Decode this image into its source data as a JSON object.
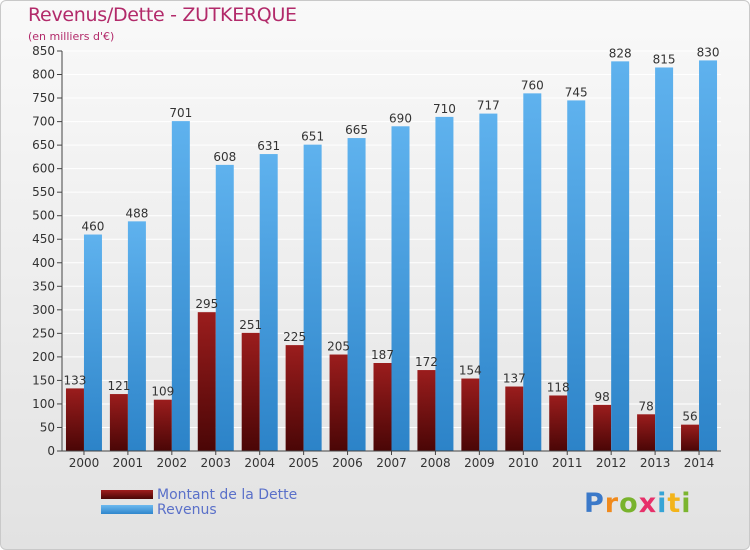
{
  "title": "Revenus/Dette - ZUTKERQUE",
  "subtitle": "(en milliers d'€)",
  "legend": {
    "debt_label": "Montant de la Dette",
    "revenue_label": "Revenus"
  },
  "logo": {
    "text": "Proxiti"
  },
  "colors": {
    "debt": "#7d1313",
    "revenue": "#4aa3e6",
    "title": "#b22a6a",
    "legend_text": "#5a70c9",
    "grid": "#ffffff",
    "axis": "#444444"
  },
  "chart_data": {
    "type": "bar",
    "title": "Revenus/Dette - ZUTKERQUE",
    "subtitle": "(en milliers d'€)",
    "xlabel": "",
    "ylabel": "",
    "ylim": [
      0,
      850
    ],
    "y_ticks": [
      0,
      50,
      100,
      150,
      200,
      250,
      300,
      350,
      400,
      450,
      500,
      550,
      600,
      650,
      700,
      750,
      800,
      850
    ],
    "grid": true,
    "legend_position": "bottom-left",
    "categories": [
      "2000",
      "2001",
      "2002",
      "2003",
      "2004",
      "2005",
      "2006",
      "2007",
      "2008",
      "2009",
      "2010",
      "2011",
      "2012",
      "2013",
      "2014"
    ],
    "series": [
      {
        "name": "Montant de la Dette",
        "values": [
          133,
          121,
          109,
          295,
          251,
          225,
          205,
          187,
          172,
          154,
          137,
          118,
          98,
          78,
          56
        ]
      },
      {
        "name": "Revenus",
        "values": [
          460,
          488,
          701,
          608,
          631,
          651,
          665,
          690,
          710,
          717,
          760,
          745,
          828,
          815,
          830
        ]
      }
    ]
  }
}
